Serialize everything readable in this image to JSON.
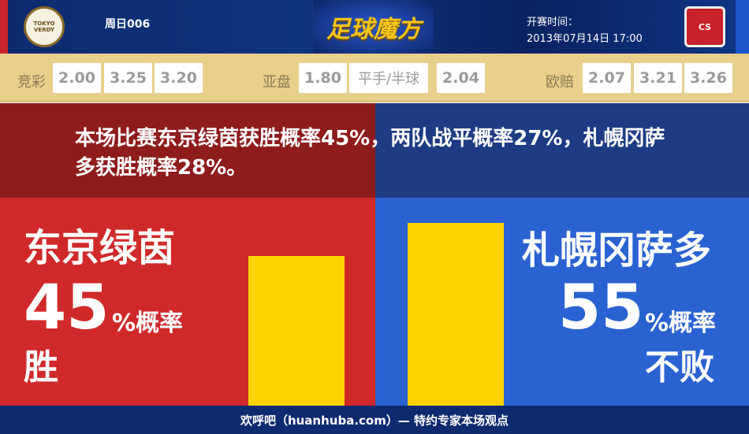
{
  "header": {
    "match_no": "周日006",
    "brand": "足球魔方",
    "kickoff_label": "开赛时间：",
    "kickoff_time": "2013年07月14日 17:00",
    "home_logo_text": "TOKYO VERDY",
    "away_logo_text": "CS"
  },
  "odds": {
    "jingcai": {
      "label": "竞彩",
      "values": [
        "2.00",
        "3.25",
        "3.20"
      ]
    },
    "asian": {
      "label": "亚盘",
      "values": [
        "1.80",
        "平手/半球",
        "2.04"
      ]
    },
    "euro": {
      "label": "欧赔",
      "values": [
        "2.07",
        "3.21",
        "3.26"
      ]
    }
  },
  "summary": "本场比赛东京绿茵获胜概率45%，两队战平概率27%，札幌冈萨多获胜概率28%。",
  "home": {
    "name": "东京绿茵",
    "percent": "45",
    "percent_label": "%概率",
    "result": "胜",
    "value": 45
  },
  "away": {
    "name": "札幌冈萨多",
    "percent": "55",
    "percent_label": "%概率",
    "result": "不败",
    "value": 55
  },
  "colors": {
    "home": "#d0292a",
    "away": "#2a62d2",
    "bar": "#fdd200"
  },
  "footer": "欢呼吧（huanhuba.com）— 特约专家本场观点"
}
